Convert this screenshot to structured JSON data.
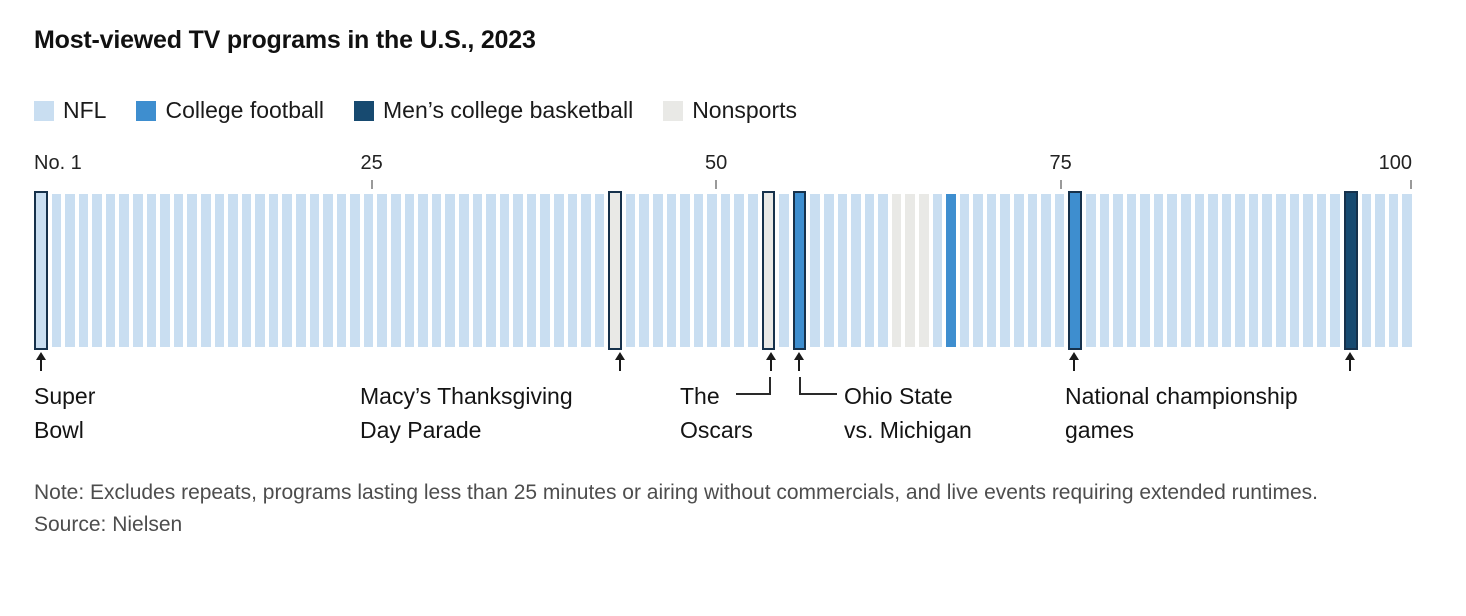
{
  "title": "Most-viewed TV programs in the U.S., 2023",
  "note": "Note: Excludes repeats, programs lasting less than 25 minutes or airing without commercials, and live events requiring extended runtimes.",
  "source": "Source: Nielsen",
  "glyphs": {
    "up_arrow": "↑"
  },
  "colors": {
    "highlight_outline": "#16314b",
    "arrow": "#1a1a1a",
    "tick": "#9a9a9a"
  },
  "chart_data": {
    "type": "bar",
    "subtype": "ranked-strip",
    "title": "Most-viewed TV programs in the U.S., 2023",
    "rank_range": [
      1,
      100
    ],
    "default_category": "NFL",
    "categories": [
      {
        "name": "NFL",
        "color": "#c9def1"
      },
      {
        "name": "College football",
        "color": "#3e8ecf"
      },
      {
        "name": "Men’s college basketball",
        "color": "#174a70"
      },
      {
        "name": "Nonsports",
        "color": "#e9e9e6"
      }
    ],
    "x_axis": {
      "ticks": [
        {
          "label": "No. 1",
          "rank": 1,
          "align": "left",
          "tick": false
        },
        {
          "label": "25",
          "rank": 25,
          "align": "center",
          "tick": true
        },
        {
          "label": "50",
          "rank": 50,
          "align": "center",
          "tick": true
        },
        {
          "label": "75",
          "rank": 75,
          "align": "center",
          "tick": true
        },
        {
          "label": "100",
          "rank": 100,
          "align": "right",
          "tick": true
        }
      ]
    },
    "ranks": [
      {
        "rank": 1,
        "category": "NFL",
        "highlighted": true,
        "label": "Super Bowl"
      },
      {
        "rank": 43,
        "category": "Nonsports",
        "highlighted": true,
        "label": "Macy’s Thanksgiving Day Parade"
      },
      {
        "rank": 54,
        "category": "Nonsports",
        "highlighted": true,
        "label": "The Oscars"
      },
      {
        "rank": 56,
        "category": "College football",
        "highlighted": true,
        "label": "Ohio State vs. Michigan"
      },
      {
        "rank": 63,
        "category": "Nonsports",
        "highlighted": false,
        "label": ""
      },
      {
        "rank": 64,
        "category": "Nonsports",
        "highlighted": false,
        "label": ""
      },
      {
        "rank": 65,
        "category": "Nonsports",
        "highlighted": false,
        "label": ""
      },
      {
        "rank": 67,
        "category": "College football",
        "highlighted": false,
        "label": ""
      },
      {
        "rank": 76,
        "category": "College football",
        "highlighted": true,
        "label": "National championship games"
      },
      {
        "rank": 96,
        "category": "Men’s college basketball",
        "highlighted": true,
        "label": "National championship games"
      }
    ]
  },
  "annotations": [
    {
      "id": "super-bowl",
      "line1": "Super",
      "line2": "Bowl",
      "arrow_ranks": [
        1
      ]
    },
    {
      "id": "macys-parade",
      "line1": "Macy’s Thanksgiving",
      "line2": "Day Parade",
      "arrow_ranks": [
        43
      ]
    },
    {
      "id": "the-oscars",
      "line1": "The",
      "line2": "Oscars",
      "arrow_ranks": [
        54
      ]
    },
    {
      "id": "ohio-state-michigan",
      "line1": "Ohio State",
      "line2": "vs. Michigan",
      "arrow_ranks": [
        56
      ]
    },
    {
      "id": "national-championship",
      "line1": "National championship",
      "line2": "games",
      "arrow_ranks": [
        76,
        96
      ]
    }
  ]
}
